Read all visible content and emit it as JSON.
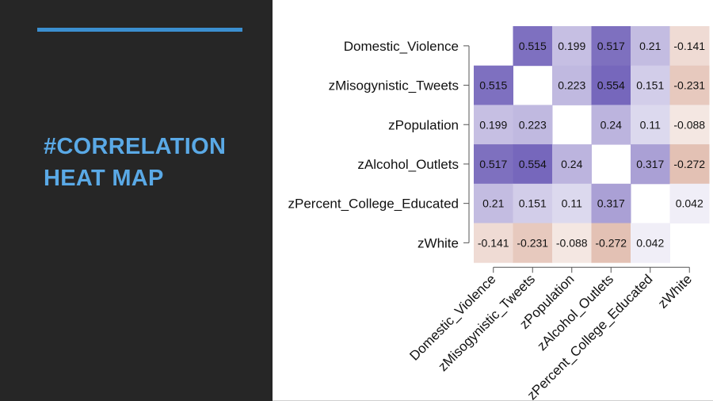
{
  "slide": {
    "title_line1": "#CORRELATION",
    "title_line2": "HEAT MAP",
    "accent_color": "#3b8fd0",
    "title_color": "#5aa9e6",
    "background_color": "#262626"
  },
  "chart_data": {
    "type": "heatmap",
    "title": "",
    "row_labels": [
      "Domestic_Violence",
      "zMisogynistic_Tweets",
      "zPopulation",
      "zAlcohol_Outlets",
      "zPercent_College_Educated",
      "zWhite"
    ],
    "col_labels": [
      "Domestic_Violence",
      "zMisogynistic_Tweets",
      "zPopulation",
      "zAlcohol_Outlets",
      "zPercent_College_Educated",
      "zWhite"
    ],
    "values": [
      [
        null,
        0.515,
        0.199,
        0.517,
        0.21,
        -0.141
      ],
      [
        0.515,
        null,
        0.223,
        0.554,
        0.151,
        -0.231
      ],
      [
        0.199,
        0.223,
        null,
        0.24,
        0.11,
        -0.088
      ],
      [
        0.517,
        0.554,
        0.24,
        null,
        0.317,
        -0.272
      ],
      [
        0.21,
        0.151,
        0.11,
        0.317,
        null,
        0.042
      ],
      [
        -0.141,
        -0.231,
        -0.088,
        -0.272,
        0.042,
        null
      ]
    ],
    "cell_labels": [
      [
        "",
        "0.515",
        "0.199",
        "0.517",
        "0.21",
        "-0.141"
      ],
      [
        "0.515",
        "",
        "0.223",
        "0.554",
        "0.151",
        "-0.231"
      ],
      [
        "0.199",
        "0.223",
        "",
        "0.24",
        "0.11",
        "-0.088"
      ],
      [
        "0.517",
        "0.554",
        "0.24",
        "",
        "0.317",
        "-0.272"
      ],
      [
        "0.21",
        "0.151",
        "0.11",
        "0.317",
        "",
        "0.042"
      ],
      [
        "-0.141",
        "-0.231",
        "-0.088",
        "-0.272",
        "0.042",
        ""
      ]
    ],
    "value_range": [
      -1,
      1
    ],
    "positive_color": "#6f5fb8",
    "negative_color": "#c9876f",
    "grid": false,
    "legend": "none"
  }
}
